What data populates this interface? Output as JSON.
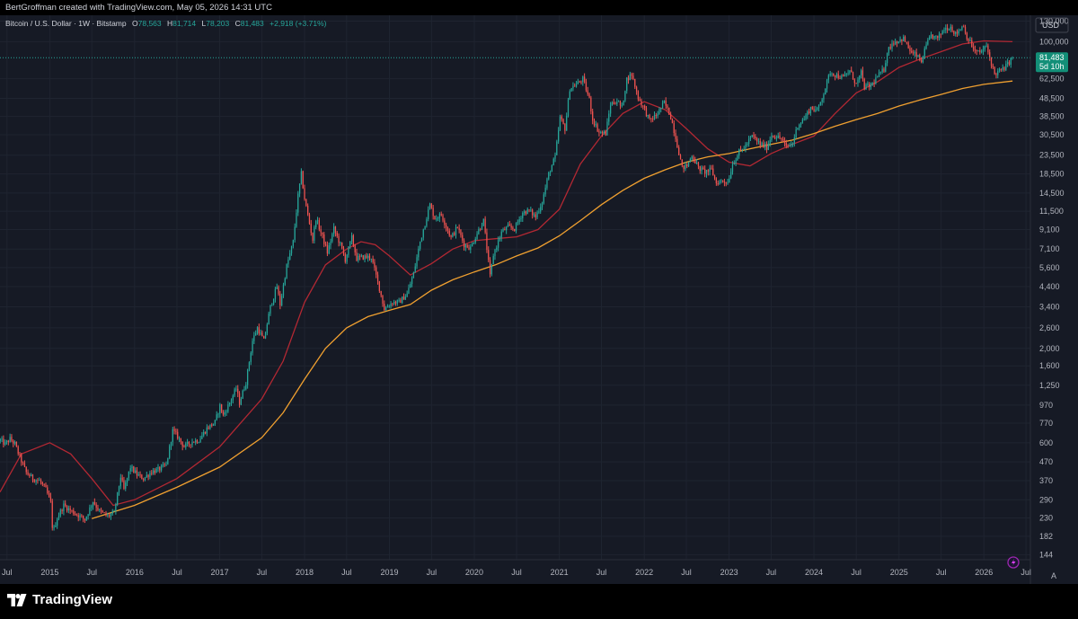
{
  "header": {
    "attribution": "BertGroffman created with TradingView.com, May 05, 2026 14:31 UTC"
  },
  "footer": {
    "brand": "TradingView"
  },
  "toolbar": {
    "currency_label": "USD",
    "scale_mode_label": "A"
  },
  "legend": {
    "symbol": "Bitcoin / U.S. Dollar · 1W · Bitstamp",
    "open_label": "O",
    "open_value": "78,563",
    "high_label": "H",
    "high_value": "81,714",
    "low_label": "L",
    "low_value": "78,203",
    "close_label": "C",
    "close_value": "81,483",
    "change": "+2,918 (+3.71%)"
  },
  "price_badge": {
    "price": "81,483",
    "countdown": "5d 10h"
  },
  "colors": {
    "up": "#26a69a",
    "down": "#ef5350",
    "ma_short": "#b22833",
    "ma_long": "#f0a030",
    "background": "#161a25",
    "grid": "#1f2430",
    "badge": "#138f78"
  },
  "chart_data": {
    "type": "candlestick",
    "title": "",
    "scale": "log",
    "grid": true,
    "ylim": [
      135,
      140000
    ],
    "xlim": [
      "2014-06-01",
      "2026-07-20"
    ],
    "y_ticks": [
      "130,000",
      "100,000",
      "81,483",
      "62,500",
      "48,500",
      "38,500",
      "30,500",
      "23,500",
      "18,500",
      "14,500",
      "11,500",
      "9,100",
      "7,100",
      "5,600",
      "4,400",
      "3,400",
      "2,600",
      "2,000",
      "1,600",
      "1,250",
      "970",
      "770",
      "600",
      "470",
      "370",
      "290",
      "230",
      "182",
      "144"
    ],
    "x_ticks": [
      {
        "date": "2014-07-01",
        "label": "Jul"
      },
      {
        "date": "2015-01-01",
        "label": "2015"
      },
      {
        "date": "2015-07-01",
        "label": "Jul"
      },
      {
        "date": "2016-01-01",
        "label": "2016"
      },
      {
        "date": "2016-07-01",
        "label": "Jul"
      },
      {
        "date": "2017-01-01",
        "label": "2017"
      },
      {
        "date": "2017-07-01",
        "label": "Jul"
      },
      {
        "date": "2018-01-01",
        "label": "2018"
      },
      {
        "date": "2018-07-01",
        "label": "Jul"
      },
      {
        "date": "2019-01-01",
        "label": "2019"
      },
      {
        "date": "2019-07-01",
        "label": "Jul"
      },
      {
        "date": "2020-01-01",
        "label": "2020"
      },
      {
        "date": "2020-07-01",
        "label": "Jul"
      },
      {
        "date": "2021-01-01",
        "label": "2021"
      },
      {
        "date": "2021-07-01",
        "label": "Jul"
      },
      {
        "date": "2022-01-01",
        "label": "2022"
      },
      {
        "date": "2022-07-01",
        "label": "Jul"
      },
      {
        "date": "2023-01-01",
        "label": "2023"
      },
      {
        "date": "2023-07-01",
        "label": "Jul"
      },
      {
        "date": "2024-01-01",
        "label": "2024"
      },
      {
        "date": "2024-07-01",
        "label": "Jul"
      },
      {
        "date": "2025-01-01",
        "label": "2025"
      },
      {
        "date": "2025-07-01",
        "label": "Jul"
      },
      {
        "date": "2026-01-01",
        "label": "2026"
      },
      {
        "date": "2026-07-01",
        "label": "Jul"
      }
    ],
    "last_close": 81483,
    "price_path": [
      [
        "2014-06-02",
        620
      ],
      [
        "2014-06-23",
        590
      ],
      [
        "2014-07-14",
        630
      ],
      [
        "2014-08-04",
        590
      ],
      [
        "2014-08-25",
        500
      ],
      [
        "2014-09-22",
        410
      ],
      [
        "2014-10-20",
        380
      ],
      [
        "2014-11-17",
        370
      ],
      [
        "2014-12-15",
        330
      ],
      [
        "2015-01-05",
        280
      ],
      [
        "2015-01-14",
        190
      ],
      [
        "2015-02-02",
        230
      ],
      [
        "2015-03-02",
        270
      ],
      [
        "2015-04-06",
        250
      ],
      [
        "2015-05-04",
        238
      ],
      [
        "2015-06-01",
        225
      ],
      [
        "2015-07-06",
        285
      ],
      [
        "2015-08-03",
        250
      ],
      [
        "2015-09-07",
        235
      ],
      [
        "2015-10-05",
        245
      ],
      [
        "2015-11-02",
        390
      ],
      [
        "2015-11-16",
        330
      ],
      [
        "2015-12-14",
        440
      ],
      [
        "2016-01-11",
        400
      ],
      [
        "2016-02-08",
        380
      ],
      [
        "2016-03-14",
        415
      ],
      [
        "2016-04-11",
        425
      ],
      [
        "2016-05-16",
        450
      ],
      [
        "2016-06-13",
        700
      ],
      [
        "2016-07-04",
        650
      ],
      [
        "2016-08-01",
        570
      ],
      [
        "2016-09-05",
        610
      ],
      [
        "2016-10-03",
        620
      ],
      [
        "2016-11-07",
        720
      ],
      [
        "2016-12-12",
        780
      ],
      [
        "2017-01-02",
        960
      ],
      [
        "2017-01-16",
        850
      ],
      [
        "2017-02-13",
        1000
      ],
      [
        "2017-03-13",
        1200
      ],
      [
        "2017-03-27",
        1000
      ],
      [
        "2017-04-24",
        1300
      ],
      [
        "2017-05-22",
        2200
      ],
      [
        "2017-06-12",
        2600
      ],
      [
        "2017-07-10",
        2200
      ],
      [
        "2017-08-07",
        3400
      ],
      [
        "2017-09-04",
        4400
      ],
      [
        "2017-09-18",
        3500
      ],
      [
        "2017-10-16",
        5700
      ],
      [
        "2017-11-13",
        7800
      ],
      [
        "2017-12-04",
        14000
      ],
      [
        "2017-12-18",
        18500
      ],
      [
        "2018-01-01",
        13500
      ],
      [
        "2018-02-05",
        8000
      ],
      [
        "2018-02-19",
        10500
      ],
      [
        "2018-03-19",
        8300
      ],
      [
        "2018-04-09",
        6800
      ],
      [
        "2018-05-07",
        9200
      ],
      [
        "2018-06-04",
        7500
      ],
      [
        "2018-06-25",
        6200
      ],
      [
        "2018-07-23",
        8200
      ],
      [
        "2018-08-13",
        6300
      ],
      [
        "2018-09-10",
        6400
      ],
      [
        "2018-10-15",
        6400
      ],
      [
        "2018-11-19",
        4300
      ],
      [
        "2018-12-10",
        3300
      ],
      [
        "2019-01-14",
        3600
      ],
      [
        "2019-02-11",
        3600
      ],
      [
        "2019-03-18",
        4000
      ],
      [
        "2019-04-15",
        5200
      ],
      [
        "2019-05-13",
        7800
      ],
      [
        "2019-06-24",
        12500
      ],
      [
        "2019-07-15",
        10500
      ],
      [
        "2019-08-12",
        11000
      ],
      [
        "2019-09-23",
        8200
      ],
      [
        "2019-10-21",
        9400
      ],
      [
        "2019-11-18",
        7500
      ],
      [
        "2019-12-16",
        7200
      ],
      [
        "2020-01-13",
        8700
      ],
      [
        "2020-02-10",
        10200
      ],
      [
        "2020-03-09",
        5000
      ],
      [
        "2020-03-23",
        6600
      ],
      [
        "2020-04-27",
        8800
      ],
      [
        "2020-05-25",
        9400
      ],
      [
        "2020-06-22",
        9200
      ],
      [
        "2020-07-27",
        11300
      ],
      [
        "2020-08-24",
        11600
      ],
      [
        "2020-09-21",
        10700
      ],
      [
        "2020-10-19",
        13000
      ],
      [
        "2020-11-16",
        18500
      ],
      [
        "2020-12-14",
        23000
      ],
      [
        "2021-01-04",
        38000
      ],
      [
        "2021-01-25",
        33000
      ],
      [
        "2021-02-15",
        55000
      ],
      [
        "2021-03-15",
        58000
      ],
      [
        "2021-04-12",
        62000
      ],
      [
        "2021-05-10",
        48000
      ],
      [
        "2021-05-24",
        37000
      ],
      [
        "2021-06-21",
        31500
      ],
      [
        "2021-07-19",
        31000
      ],
      [
        "2021-08-09",
        45000
      ],
      [
        "2021-09-06",
        47000
      ],
      [
        "2021-09-27",
        43000
      ],
      [
        "2021-10-18",
        62000
      ],
      [
        "2021-11-08",
        66000
      ],
      [
        "2021-12-06",
        49000
      ],
      [
        "2022-01-03",
        42000
      ],
      [
        "2022-01-24",
        36500
      ],
      [
        "2022-02-21",
        39000
      ],
      [
        "2022-03-28",
        46000
      ],
      [
        "2022-04-25",
        38500
      ],
      [
        "2022-05-16",
        29500
      ],
      [
        "2022-06-13",
        20000
      ],
      [
        "2022-07-04",
        20500
      ],
      [
        "2022-07-25",
        23500
      ],
      [
        "2022-08-22",
        20000
      ],
      [
        "2022-09-19",
        19000
      ],
      [
        "2022-10-17",
        19500
      ],
      [
        "2022-11-07",
        16500
      ],
      [
        "2022-12-05",
        17000
      ],
      [
        "2022-12-26",
        16600
      ],
      [
        "2023-01-16",
        21000
      ],
      [
        "2023-02-13",
        24500
      ],
      [
        "2023-03-13",
        26500
      ],
      [
        "2023-04-10",
        30000
      ],
      [
        "2023-05-15",
        27000
      ],
      [
        "2023-06-12",
        26000
      ],
      [
        "2023-07-03",
        30500
      ],
      [
        "2023-08-14",
        29000
      ],
      [
        "2023-09-04",
        26000
      ],
      [
        "2023-10-02",
        27500
      ],
      [
        "2023-10-23",
        34500
      ],
      [
        "2023-11-20",
        37500
      ],
      [
        "2023-12-18",
        43000
      ],
      [
        "2024-01-15",
        41500
      ],
      [
        "2024-02-12",
        52000
      ],
      [
        "2024-03-11",
        68000
      ],
      [
        "2024-04-08",
        65000
      ],
      [
        "2024-05-06",
        63000
      ],
      [
        "2024-06-03",
        69000
      ],
      [
        "2024-07-01",
        58000
      ],
      [
        "2024-07-22",
        67000
      ],
      [
        "2024-08-05",
        56000
      ],
      [
        "2024-09-02",
        57000
      ],
      [
        "2024-09-30",
        64000
      ],
      [
        "2024-10-28",
        70000
      ],
      [
        "2024-11-11",
        88000
      ],
      [
        "2024-12-02",
        98000
      ],
      [
        "2024-12-16",
        100000
      ],
      [
        "2025-01-20",
        104000
      ],
      [
        "2025-02-24",
        86000
      ],
      [
        "2025-03-17",
        84000
      ],
      [
        "2025-04-07",
        77000
      ],
      [
        "2025-04-28",
        95000
      ],
      [
        "2025-05-19",
        108000
      ],
      [
        "2025-06-16",
        104000
      ],
      [
        "2025-07-14",
        118000
      ],
      [
        "2025-08-11",
        121000
      ],
      [
        "2025-09-01",
        110000
      ],
      [
        "2025-10-06",
        124000
      ],
      [
        "2025-10-13",
        111000
      ],
      [
        "2025-11-10",
        95000
      ],
      [
        "2025-11-24",
        88000
      ],
      [
        "2025-12-15",
        87000
      ],
      [
        "2026-01-12",
        94000
      ],
      [
        "2026-02-02",
        76000
      ],
      [
        "2026-02-16",
        66000
      ],
      [
        "2026-03-02",
        68000
      ],
      [
        "2026-03-23",
        70000
      ],
      [
        "2026-04-13",
        75000
      ],
      [
        "2026-05-04",
        81483
      ]
    ],
    "series": [
      {
        "name": "",
        "color": "#b22833",
        "points": [
          [
            "2014-06-01",
            320
          ],
          [
            "2014-09-01",
            520
          ],
          [
            "2015-01-01",
            600
          ],
          [
            "2015-04-01",
            520
          ],
          [
            "2015-07-01",
            380
          ],
          [
            "2015-10-01",
            270
          ],
          [
            "2016-01-01",
            290
          ],
          [
            "2016-07-01",
            380
          ],
          [
            "2017-01-01",
            570
          ],
          [
            "2017-07-01",
            1050
          ],
          [
            "2017-10-01",
            1700
          ],
          [
            "2018-01-01",
            3600
          ],
          [
            "2018-04-01",
            5800
          ],
          [
            "2018-07-01",
            7100
          ],
          [
            "2018-09-01",
            7800
          ],
          [
            "2018-11-01",
            7500
          ],
          [
            "2019-01-01",
            6500
          ],
          [
            "2019-04-01",
            5100
          ],
          [
            "2019-07-01",
            5900
          ],
          [
            "2019-10-01",
            7100
          ],
          [
            "2020-01-01",
            7900
          ],
          [
            "2020-04-01",
            8100
          ],
          [
            "2020-07-01",
            8300
          ],
          [
            "2020-10-01",
            9100
          ],
          [
            "2021-01-01",
            11800
          ],
          [
            "2021-04-01",
            21000
          ],
          [
            "2021-07-01",
            30000
          ],
          [
            "2021-10-01",
            40000
          ],
          [
            "2022-01-01",
            46500
          ],
          [
            "2022-04-01",
            42000
          ],
          [
            "2022-07-01",
            33000
          ],
          [
            "2022-10-01",
            25500
          ],
          [
            "2023-01-01",
            21500
          ],
          [
            "2023-04-01",
            20500
          ],
          [
            "2023-07-01",
            24000
          ],
          [
            "2023-10-01",
            27000
          ],
          [
            "2024-01-01",
            30000
          ],
          [
            "2024-04-01",
            40000
          ],
          [
            "2024-07-01",
            52000
          ],
          [
            "2024-10-01",
            60000
          ],
          [
            "2025-01-01",
            72000
          ],
          [
            "2025-04-01",
            80000
          ],
          [
            "2025-07-01",
            88000
          ],
          [
            "2025-10-01",
            97000
          ],
          [
            "2026-01-01",
            101000
          ],
          [
            "2026-05-04",
            100000
          ]
        ]
      },
      {
        "name": "",
        "color": "#f0a030",
        "points": [
          [
            "2015-07-01",
            228
          ],
          [
            "2016-01-01",
            270
          ],
          [
            "2016-07-01",
            340
          ],
          [
            "2017-01-01",
            440
          ],
          [
            "2017-07-01",
            640
          ],
          [
            "2017-10-01",
            880
          ],
          [
            "2018-01-01",
            1350
          ],
          [
            "2018-04-01",
            2000
          ],
          [
            "2018-07-01",
            2600
          ],
          [
            "2018-10-01",
            3000
          ],
          [
            "2019-01-01",
            3250
          ],
          [
            "2019-04-01",
            3500
          ],
          [
            "2019-07-01",
            4200
          ],
          [
            "2019-10-01",
            4800
          ],
          [
            "2020-01-01",
            5300
          ],
          [
            "2020-04-01",
            5800
          ],
          [
            "2020-07-01",
            6500
          ],
          [
            "2020-10-01",
            7200
          ],
          [
            "2021-01-01",
            8400
          ],
          [
            "2021-04-01",
            10200
          ],
          [
            "2021-07-01",
            12500
          ],
          [
            "2021-10-01",
            15000
          ],
          [
            "2022-01-01",
            17500
          ],
          [
            "2022-04-01",
            19500
          ],
          [
            "2022-07-01",
            21500
          ],
          [
            "2022-10-01",
            23000
          ],
          [
            "2023-01-01",
            24000
          ],
          [
            "2023-04-01",
            25500
          ],
          [
            "2023-07-01",
            27000
          ],
          [
            "2023-10-01",
            28500
          ],
          [
            "2024-01-01",
            31000
          ],
          [
            "2024-04-01",
            34000
          ],
          [
            "2024-07-01",
            37000
          ],
          [
            "2024-10-01",
            40000
          ],
          [
            "2025-01-01",
            44000
          ],
          [
            "2025-04-01",
            47500
          ],
          [
            "2025-07-01",
            51000
          ],
          [
            "2025-10-01",
            55000
          ],
          [
            "2026-01-01",
            58000
          ],
          [
            "2026-05-04",
            60500
          ]
        ]
      }
    ]
  }
}
